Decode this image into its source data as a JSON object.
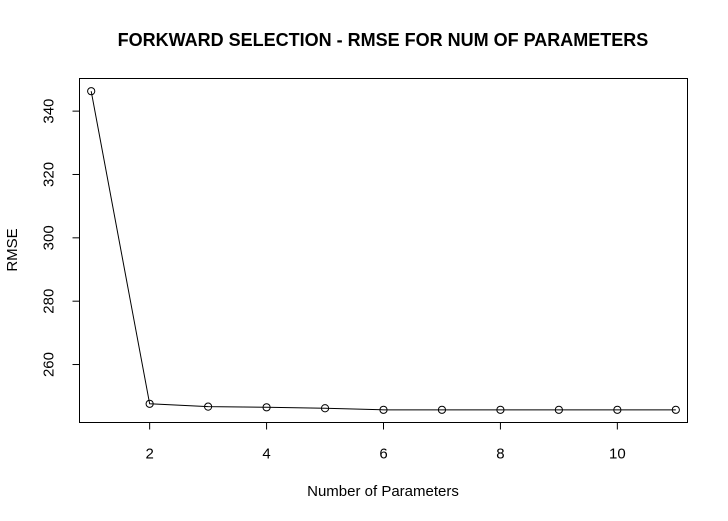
{
  "chart_data": {
    "type": "line",
    "title": "FORKWARD SELECTION - RMSE FOR NUM OF PARAMETERS",
    "xlabel": "Number of Parameters",
    "ylabel": "RMSE",
    "x": [
      1,
      2,
      3,
      4,
      5,
      6,
      7,
      8,
      9,
      10,
      11
    ],
    "series": [
      {
        "values": [
          346.3,
          247.6,
          246.7,
          246.5,
          246.2,
          245.7,
          245.7,
          245.7,
          245.7,
          245.7,
          245.7
        ]
      }
    ],
    "xlim": [
      0.8,
      11.2
    ],
    "ylim": [
      241.7,
      350.3
    ],
    "xticks": [
      2,
      4,
      6,
      8,
      10
    ],
    "yticks": [
      260,
      280,
      300,
      320,
      340
    ],
    "grid": false,
    "legend": "none",
    "colors": {
      "line": "#000000",
      "axis": "#000000",
      "background": "#ffffff"
    }
  }
}
